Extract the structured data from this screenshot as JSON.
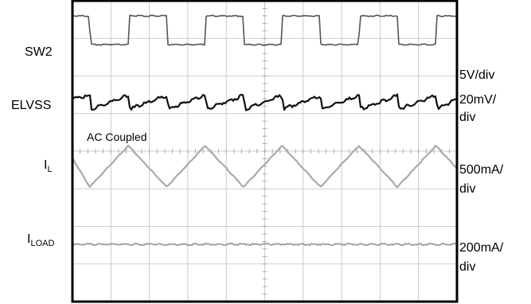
{
  "chart_data": {
    "type": "line",
    "title": "",
    "xlabel": "",
    "ylabel": "",
    "grid": true,
    "grid_divisions": {
      "horizontal": 10,
      "vertical": 8
    },
    "annotation": "AC Coupled",
    "channels": [
      {
        "name": "SW2",
        "name_sub": "",
        "scale": "5V/div",
        "scale_lines": [
          "5V/div"
        ],
        "color": "#555555"
      },
      {
        "name": "ELVSS",
        "name_sub": "",
        "scale": "20mV/div",
        "scale_lines": [
          "20mV/",
          "div"
        ],
        "color": "#111111"
      },
      {
        "name": "I",
        "name_sub": "L",
        "scale": "500mA/div",
        "scale_lines": [
          "500mA/",
          "div"
        ],
        "color": "#aaaaaa"
      },
      {
        "name": "I",
        "name_sub": "LOAD",
        "scale": "200mA/div",
        "scale_lines": [
          "200mA/",
          "div"
        ],
        "color": "#999999"
      }
    ],
    "series": [
      {
        "name": "SW2",
        "x": [
          0,
          0.45,
          0.46,
          1.45,
          1.46,
          2.45,
          2.46,
          3.45,
          3.46,
          4.45,
          4.46,
          5.45,
          5.46,
          6.45,
          6.46,
          7.45,
          7.46,
          8.45,
          8.46,
          9.45,
          9.46,
          10
        ],
        "values": [
          1,
          1,
          0,
          0,
          1,
          1,
          0,
          0,
          1,
          1,
          0,
          0,
          1,
          1,
          0,
          0,
          1,
          1,
          0,
          0,
          1,
          1
        ]
      },
      {
        "name": "ELVSS",
        "x": [
          0,
          0.45,
          0.5,
          1.45,
          1.5,
          2.45,
          2.5,
          3.45,
          3.5,
          4.45,
          4.5,
          5.45,
          5.5,
          6.45,
          6.5,
          7.45,
          7.5,
          8.45,
          8.5,
          9.45,
          9.5,
          10
        ],
        "values": [
          0.2,
          0.5,
          -0.7,
          0.5,
          -0.7,
          0.5,
          -0.7,
          0.5,
          -0.7,
          0.5,
          -0.7,
          0.5,
          -0.7,
          0.5,
          -0.7,
          0.5,
          -0.7,
          0.5,
          -0.7,
          0.5,
          -0.7,
          0.2
        ]
      },
      {
        "name": "IL",
        "x": [
          0,
          0.45,
          1.45,
          2.45,
          3.45,
          4.45,
          5.45,
          6.45,
          7.45,
          8.45,
          9.45,
          10
        ],
        "values": [
          0.4,
          -1,
          1,
          -1,
          1,
          -1,
          1,
          -1,
          1,
          -1,
          1,
          -0.1
        ]
      },
      {
        "name": "ILOAD",
        "x": [
          0,
          10
        ],
        "values": [
          0,
          0
        ]
      }
    ]
  }
}
